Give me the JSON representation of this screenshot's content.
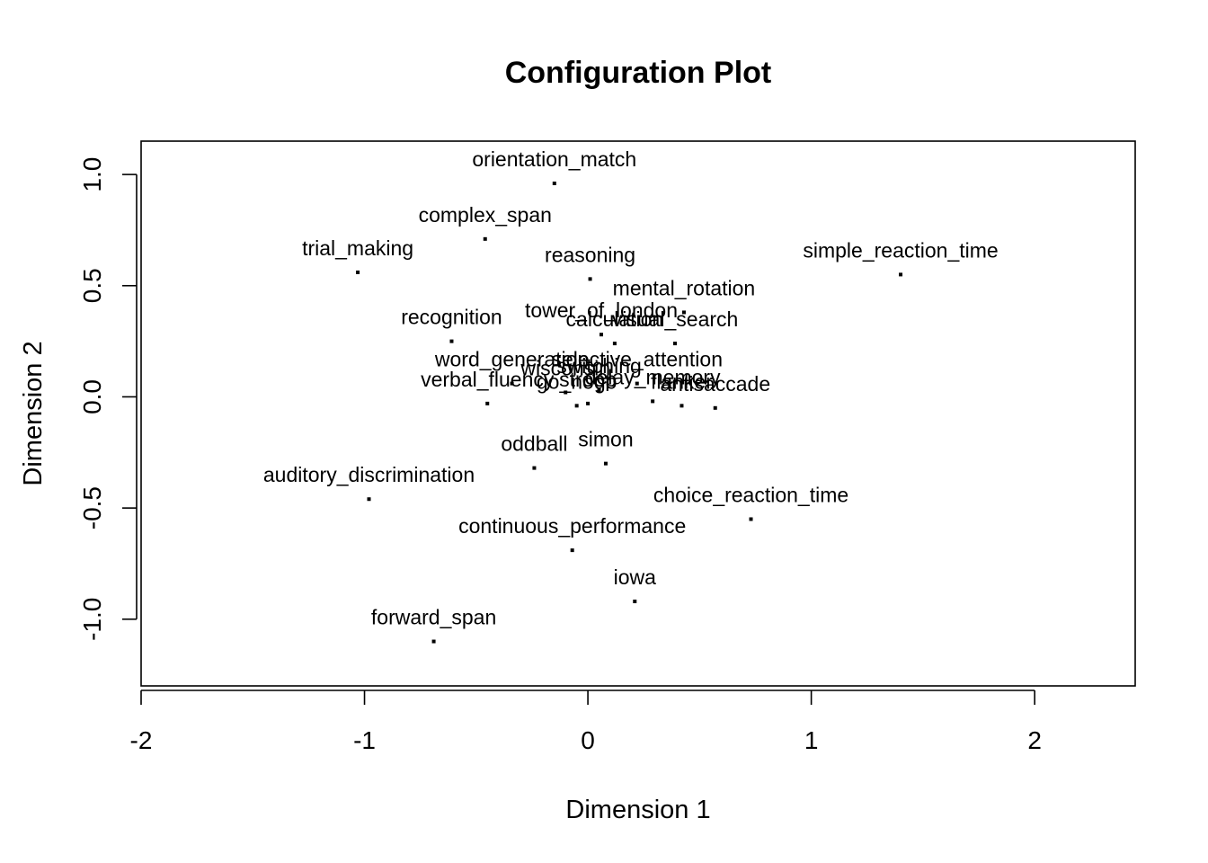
{
  "chart_data": {
    "type": "scatter",
    "title": "Configuration Plot",
    "xlabel": "Dimension 1",
    "ylabel": "Dimension 2",
    "xlim": [
      -2.0,
      2.45
    ],
    "ylim": [
      -1.3,
      1.15
    ],
    "xticks": [
      -2,
      -1,
      0,
      1,
      2
    ],
    "xtick_labels": [
      "-2",
      "-1",
      "0",
      "1",
      "2"
    ],
    "yticks": [
      -1.0,
      -0.5,
      0.0,
      0.5,
      1.0
    ],
    "ytick_labels": [
      "-1.0",
      "-0.5",
      "0.0",
      "0.5",
      "1.0"
    ],
    "grid": false,
    "points": [
      {
        "label": "orientation_match",
        "x": -0.15,
        "y": 0.96
      },
      {
        "label": "complex_span",
        "x": -0.46,
        "y": 0.71
      },
      {
        "label": "trial_making",
        "x": -1.03,
        "y": 0.56
      },
      {
        "label": "simple_reaction_time",
        "x": 1.4,
        "y": 0.55
      },
      {
        "label": "reasoning",
        "x": 0.01,
        "y": 0.53
      },
      {
        "label": "mental_rotation",
        "x": 0.43,
        "y": 0.38
      },
      {
        "label": "tower_of_london",
        "x": 0.06,
        "y": 0.28
      },
      {
        "label": "visual_search",
        "x": 0.39,
        "y": 0.24
      },
      {
        "label": "calculation",
        "x": 0.12,
        "y": 0.24
      },
      {
        "label": "recognition",
        "x": -0.61,
        "y": 0.25
      },
      {
        "label": "word_generation",
        "x": -0.34,
        "y": 0.06
      },
      {
        "label": "selective_attention",
        "x": 0.22,
        "y": 0.06
      },
      {
        "label": "switching",
        "x": 0.05,
        "y": 0.03
      },
      {
        "label": "verbal_fluency",
        "x": -0.45,
        "y": -0.03
      },
      {
        "label": "wisconsin",
        "x": -0.1,
        "y": 0.02
      },
      {
        "label": "stroop",
        "x": 0.0,
        "y": -0.03
      },
      {
        "label": "delay_memory",
        "x": 0.29,
        "y": -0.02
      },
      {
        "label": "antisaccade",
        "x": 0.57,
        "y": -0.05
      },
      {
        "label": "flanker",
        "x": 0.42,
        "y": -0.04
      },
      {
        "label": "go_nogo",
        "x": -0.05,
        "y": -0.04
      },
      {
        "label": "simon",
        "x": 0.08,
        "y": -0.3
      },
      {
        "label": "oddball",
        "x": -0.24,
        "y": -0.32
      },
      {
        "label": "auditory_discrimination",
        "x": -0.98,
        "y": -0.46
      },
      {
        "label": "choice_reaction_time",
        "x": 0.73,
        "y": -0.55
      },
      {
        "label": "continuous_performance",
        "x": -0.07,
        "y": -0.69
      },
      {
        "label": "iowa",
        "x": 0.21,
        "y": -0.92
      },
      {
        "label": "forward_span",
        "x": -0.69,
        "y": -1.1
      }
    ]
  }
}
